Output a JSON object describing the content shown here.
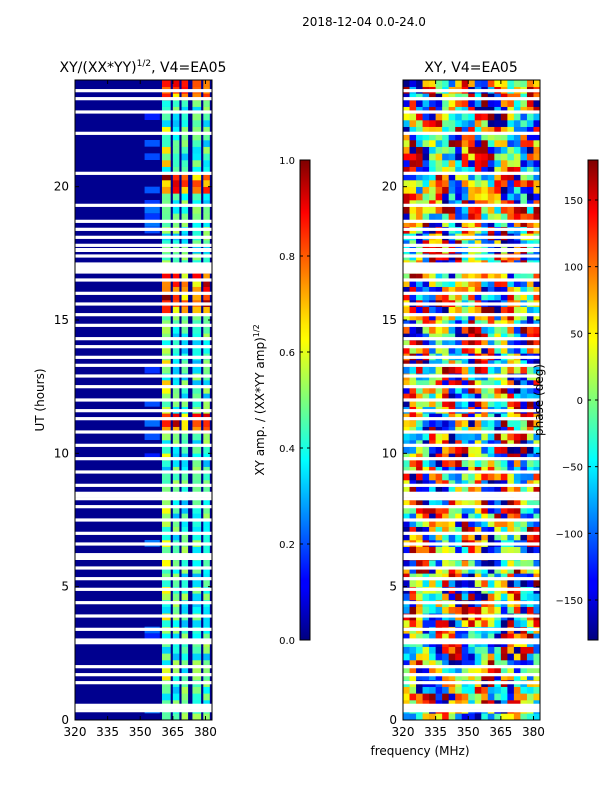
{
  "suptitle": "2018-12-04 0.0-24.0",
  "shared": {
    "xlabel": "frequency (MHz)",
    "ylabel": "UT (hours)"
  },
  "chart_data": [
    {
      "type": "heatmap",
      "title": "XY/(XX*YY)",
      "title_exp": "1/2",
      "title_suffix": ", V4=EA05",
      "xlabel": "frequency (MHz)",
      "ylabel": "UT (hours)",
      "xlim": [
        320,
        383
      ],
      "ylim": [
        0,
        24
      ],
      "xticks": [
        320,
        335,
        350,
        365,
        380
      ],
      "yticks": [
        0,
        5,
        10,
        15,
        20
      ],
      "colorbar": {
        "label": "XY amp. / (XX*YY amp)",
        "label_exp": "1/2",
        "range": [
          0.0,
          1.0
        ],
        "ticks": [
          "0.0",
          "0.2",
          "0.4",
          "0.6",
          "0.8",
          "1.0"
        ],
        "colormap": "jet"
      },
      "bright_channels_mhz": [
        [
          360,
          364
        ],
        [
          365,
          368
        ],
        [
          369,
          372
        ],
        [
          374,
          378
        ],
        [
          379,
          382
        ]
      ],
      "flagged_hours": [
        0.35,
        0.55,
        1.4,
        1.7,
        2.0,
        2.9,
        3.0,
        3.4,
        3.9,
        4.4,
        4.9,
        5.3,
        5.7,
        6.1,
        6.2,
        6.6,
        7.0,
        7.5,
        8.0,
        8.3,
        8.5,
        8.8,
        9.3,
        9.8,
        10.3,
        10.8,
        11.3,
        11.6,
        12.0,
        12.5,
        12.9,
        13.3,
        13.6,
        14.0,
        14.3,
        14.8,
        15.2,
        15.6,
        16.0,
        16.5,
        16.8,
        17.1,
        17.4,
        17.8,
        18.1,
        18.4,
        18.7,
        19.3,
        20.5,
        22.0,
        22.8,
        23.3,
        23.6
      ]
    },
    {
      "type": "heatmap",
      "title": "XY, V4=EA05",
      "xlabel": "frequency (MHz)",
      "ylabel": "UT (hours)",
      "xlim": [
        320,
        383
      ],
      "ylim": [
        0,
        24
      ],
      "xticks": [
        320,
        335,
        350,
        365,
        380
      ],
      "yticks": [
        0,
        5,
        10,
        15,
        20
      ],
      "colorbar": {
        "label": "phase (deg)",
        "range": [
          -180,
          180
        ],
        "ticks": [
          "−150",
          "−100",
          "−50",
          "0",
          "50",
          "100",
          "150"
        ],
        "tick_values": [
          -150,
          -100,
          -50,
          0,
          50,
          100,
          150
        ],
        "colormap": "jet"
      },
      "flagged_hours": [
        0.35,
        0.55,
        1.4,
        1.7,
        2.0,
        2.9,
        3.0,
        3.4,
        3.9,
        4.4,
        4.9,
        5.3,
        5.7,
        6.1,
        6.2,
        6.6,
        7.0,
        7.5,
        8.0,
        8.3,
        8.5,
        8.8,
        9.3,
        9.8,
        10.3,
        10.8,
        11.3,
        11.6,
        12.0,
        12.5,
        12.9,
        13.3,
        13.6,
        14.0,
        14.3,
        14.8,
        15.2,
        15.6,
        16.0,
        16.5,
        16.8,
        17.1,
        17.4,
        17.8,
        18.1,
        18.4,
        18.7,
        19.3,
        20.5,
        22.0,
        22.8,
        23.3,
        23.6
      ]
    }
  ]
}
